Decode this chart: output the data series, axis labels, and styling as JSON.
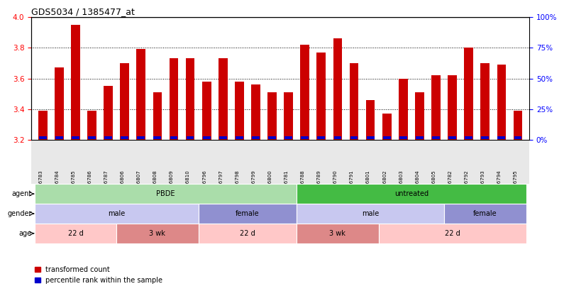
{
  "title": "GDS5034 / 1385477_at",
  "samples": [
    "GSM796783",
    "GSM796784",
    "GSM796785",
    "GSM796786",
    "GSM796787",
    "GSM796806",
    "GSM796807",
    "GSM796808",
    "GSM796809",
    "GSM796810",
    "GSM796796",
    "GSM796797",
    "GSM796798",
    "GSM796799",
    "GSM796800",
    "GSM796781",
    "GSM796788",
    "GSM796789",
    "GSM796790",
    "GSM796791",
    "GSM796801",
    "GSM796802",
    "GSM796803",
    "GSM796804",
    "GSM796805",
    "GSM796782",
    "GSM796792",
    "GSM796793",
    "GSM796794",
    "GSM796795"
  ],
  "red_values": [
    3.39,
    3.67,
    3.95,
    3.39,
    3.55,
    3.7,
    3.79,
    3.51,
    3.73,
    3.73,
    3.58,
    3.73,
    3.58,
    3.56,
    3.51,
    3.51,
    3.82,
    3.77,
    3.86,
    3.7,
    3.46,
    3.37,
    3.6,
    3.51,
    3.62,
    3.62,
    3.8,
    3.7,
    3.69,
    3.39
  ],
  "ymin": 3.2,
  "ymax": 4.0,
  "yticks": [
    3.2,
    3.4,
    3.6,
    3.8,
    4.0
  ],
  "right_ytick_labels": [
    "0%",
    "25%",
    "50%",
    "75%",
    "100%"
  ],
  "agent_groups": [
    {
      "label": "PBDE",
      "start": 0,
      "end": 15,
      "color": "#aaddaa"
    },
    {
      "label": "untreated",
      "start": 16,
      "end": 29,
      "color": "#44bb44"
    }
  ],
  "gender_groups": [
    {
      "label": "male",
      "start": 0,
      "end": 9,
      "color": "#c8c8f0"
    },
    {
      "label": "female",
      "start": 10,
      "end": 15,
      "color": "#9090d0"
    },
    {
      "label": "male",
      "start": 16,
      "end": 24,
      "color": "#c8c8f0"
    },
    {
      "label": "female",
      "start": 25,
      "end": 29,
      "color": "#9090d0"
    }
  ],
  "age_groups": [
    {
      "label": "22 d",
      "start": 0,
      "end": 4,
      "color": "#ffc8c8"
    },
    {
      "label": "3 wk",
      "start": 5,
      "end": 9,
      "color": "#dd8888"
    },
    {
      "label": "22 d",
      "start": 10,
      "end": 15,
      "color": "#ffc8c8"
    },
    {
      "label": "3 wk",
      "start": 16,
      "end": 20,
      "color": "#dd8888"
    },
    {
      "label": "22 d",
      "start": 21,
      "end": 29,
      "color": "#ffc8c8"
    }
  ],
  "bar_color_red": "#cc0000",
  "bar_color_blue": "#0000cc",
  "background": "#ffffff",
  "legend_red": "transformed count",
  "legend_blue": "percentile rank within the sample"
}
